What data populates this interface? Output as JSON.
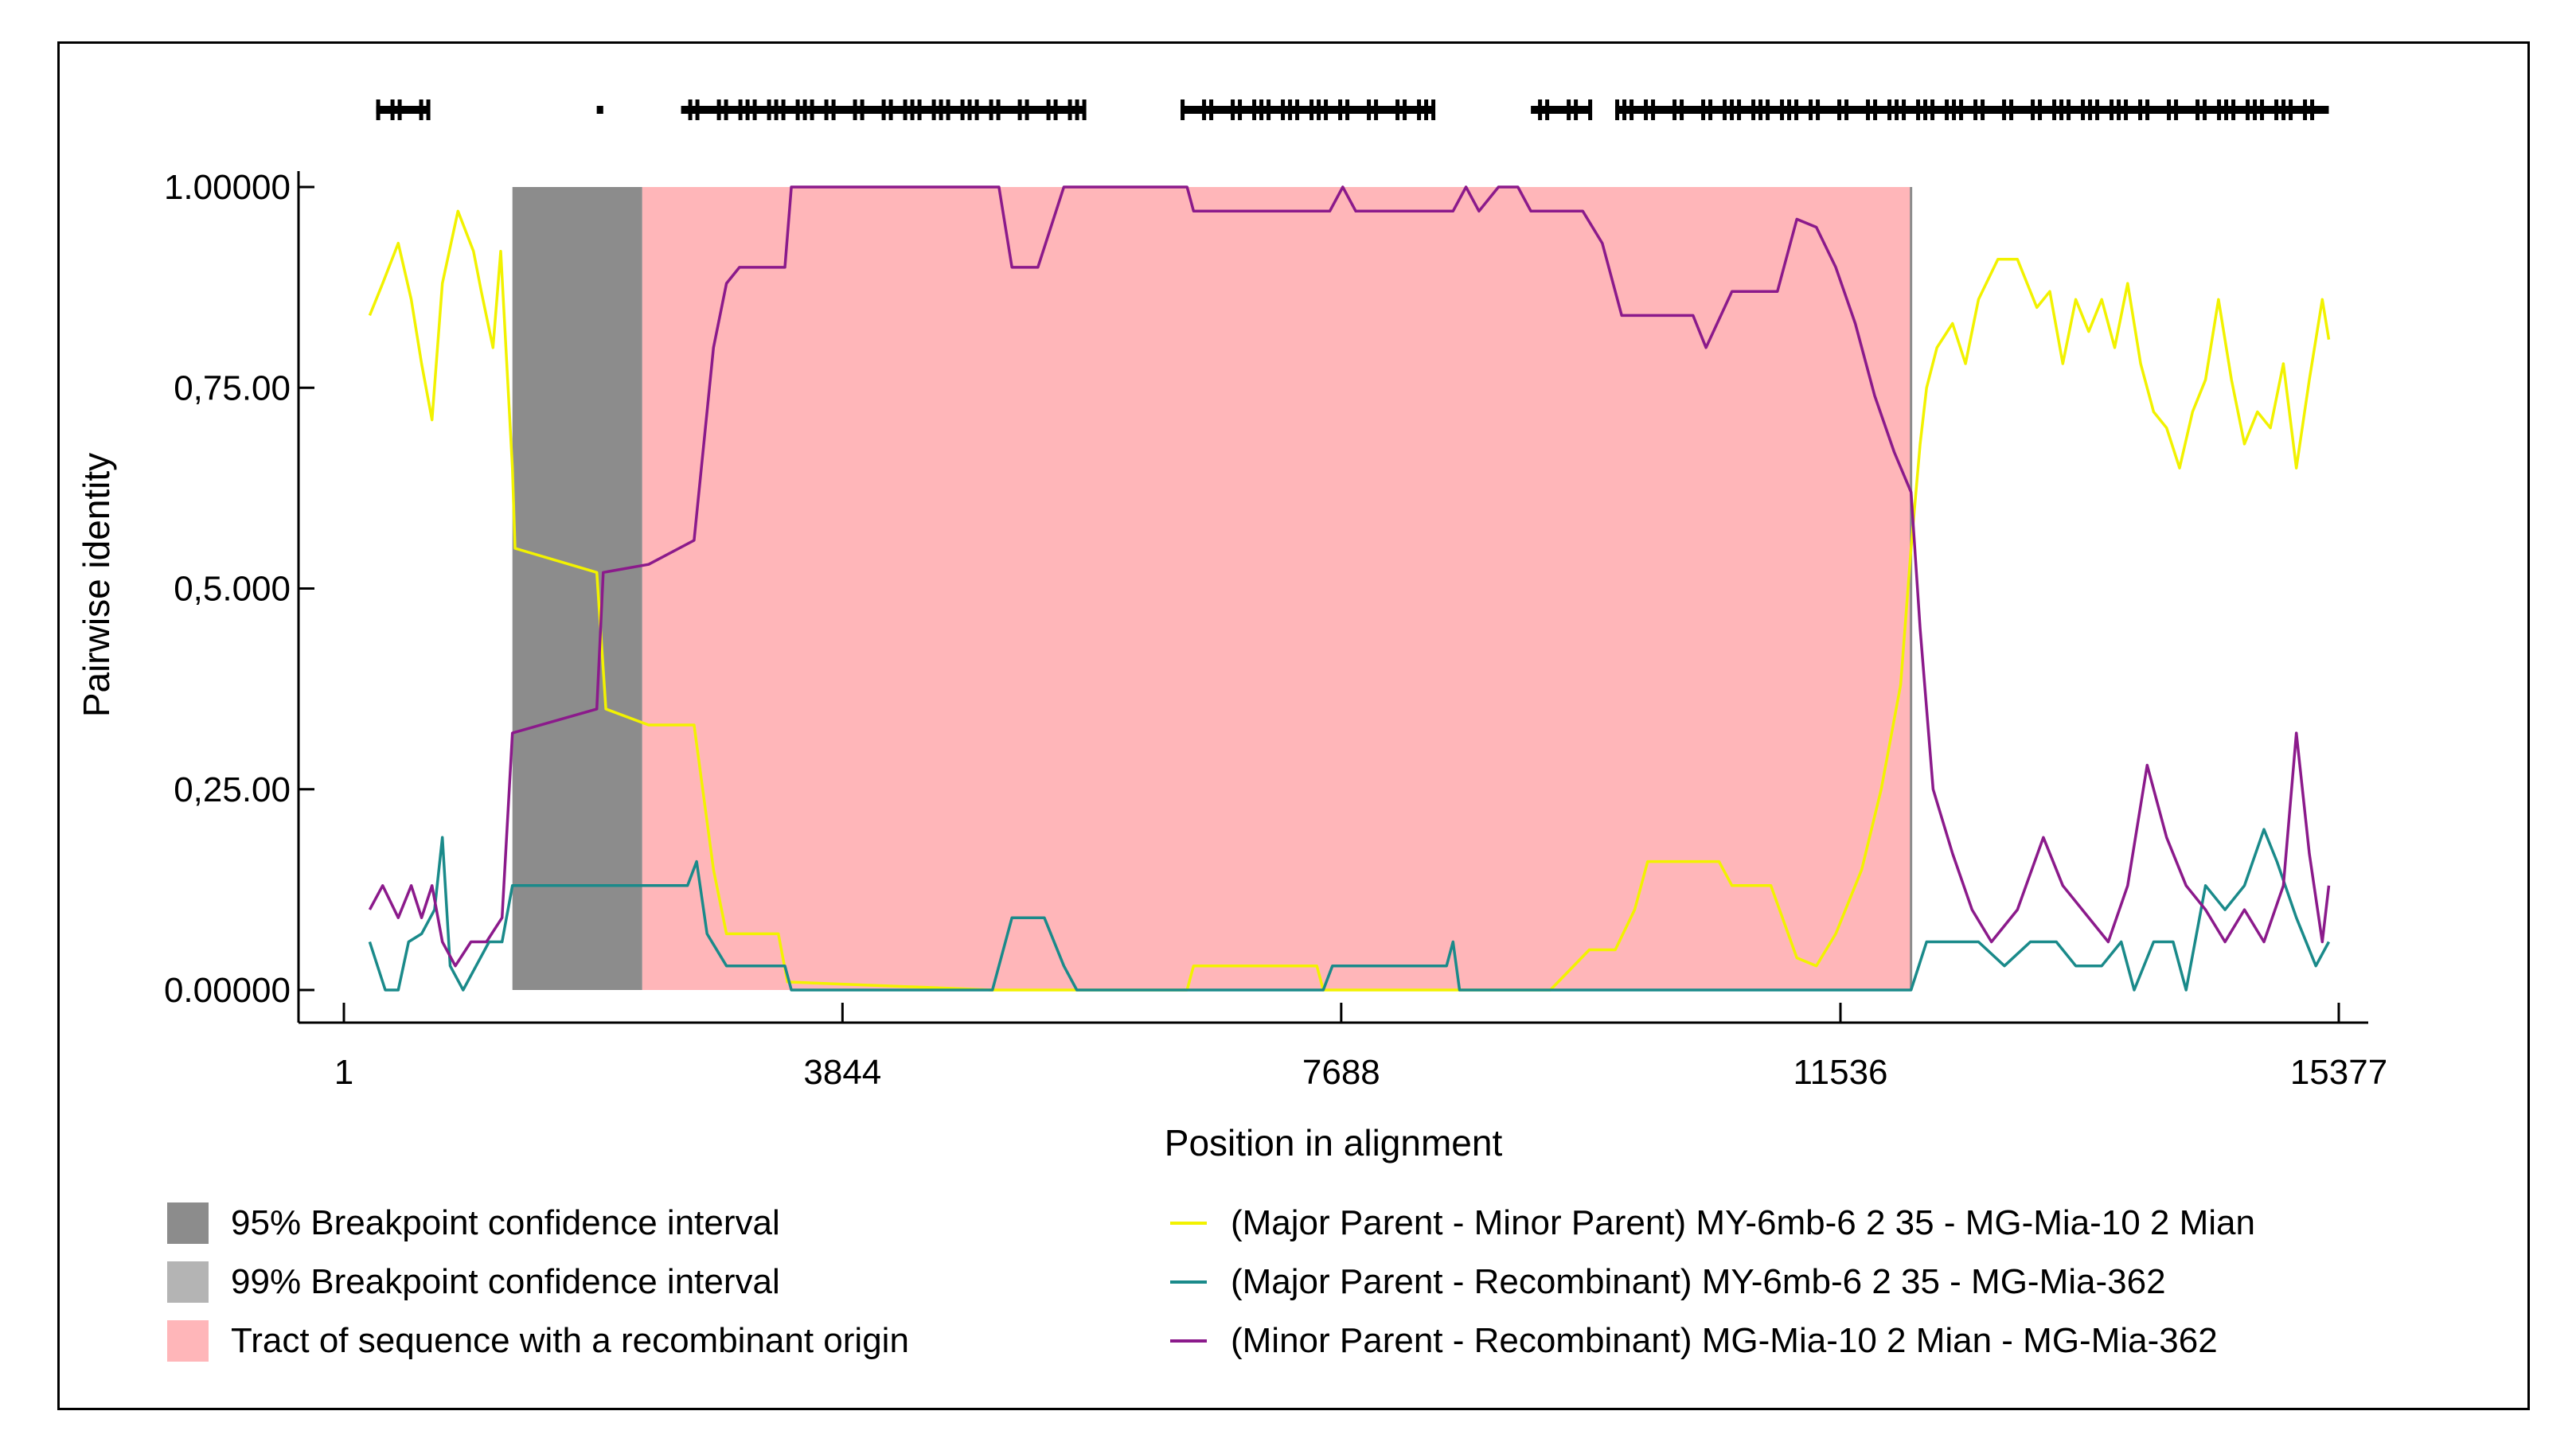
{
  "chart_data": {
    "type": "line",
    "title": "",
    "xlabel": "Position in alignment",
    "ylabel": "Pairwise identity",
    "xlim": [
      1,
      15377
    ],
    "ylim": [
      0,
      1
    ],
    "x_ticks": [
      1,
      3844,
      7688,
      11536,
      15377
    ],
    "x_tick_labels": [
      "1",
      "3844",
      "7688",
      "11536",
      "15377"
    ],
    "y_ticks": [
      0,
      0.25,
      0.5,
      0.75,
      1.0
    ],
    "y_tick_labels": [
      "0.00000",
      "0,25.00",
      "0,5.000",
      "0,75.00",
      "1.00000"
    ],
    "grid": false,
    "legend_position": "bottom",
    "breakpoint_ci_95": [
      1300,
      2300
    ],
    "recombinant_tract": [
      2300,
      12080
    ],
    "informative_sites": [
      [
        250,
        650
      ],
      [
        1950,
        2000
      ],
      [
        2600,
        5700
      ],
      [
        6450,
        8400
      ],
      [
        9150,
        9600
      ],
      [
        9800,
        15300
      ]
    ],
    "shaded_legend": [
      {
        "label": "95% Breakpoint confidence interval",
        "color": "#8c8c8c"
      },
      {
        "label": "99% Breakpoint confidence interval",
        "color": "#b4b4b4"
      },
      {
        "label": "Tract of sequence with a recombinant origin",
        "color": "#ffb6b9"
      }
    ],
    "series": [
      {
        "name": "(Major Parent - Minor Parent) MY-6mb-6 2 35 - MG-Mia-10 2 Mian",
        "color": "#f2f200",
        "points": [
          [
            200,
            0.84
          ],
          [
            300,
            0.88
          ],
          [
            420,
            0.93
          ],
          [
            520,
            0.86
          ],
          [
            600,
            0.78
          ],
          [
            680,
            0.71
          ],
          [
            760,
            0.88
          ],
          [
            880,
            0.97
          ],
          [
            1000,
            0.92
          ],
          [
            1060,
            0.87
          ],
          [
            1150,
            0.8
          ],
          [
            1210,
            0.92
          ],
          [
            1300,
            0.65
          ],
          [
            1320,
            0.55
          ],
          [
            1950,
            0.52
          ],
          [
            2020,
            0.35
          ],
          [
            2350,
            0.33
          ],
          [
            2700,
            0.33
          ],
          [
            2850,
            0.15
          ],
          [
            2950,
            0.07
          ],
          [
            3350,
            0.07
          ],
          [
            3420,
            0.01
          ],
          [
            5000,
            0.0
          ],
          [
            5200,
            0.0
          ],
          [
            5600,
            0.0
          ],
          [
            6500,
            0.0
          ],
          [
            6550,
            0.03
          ],
          [
            7500,
            0.03
          ],
          [
            7550,
            0.0
          ],
          [
            9000,
            0.0
          ],
          [
            9300,
            0.0
          ],
          [
            9600,
            0.05
          ],
          [
            9800,
            0.05
          ],
          [
            9950,
            0.1
          ],
          [
            10050,
            0.16
          ],
          [
            10600,
            0.16
          ],
          [
            10700,
            0.13
          ],
          [
            11000,
            0.13
          ],
          [
            11200,
            0.04
          ],
          [
            11350,
            0.03
          ],
          [
            11500,
            0.07
          ],
          [
            11700,
            0.15
          ],
          [
            11850,
            0.25
          ],
          [
            12000,
            0.38
          ],
          [
            12080,
            0.55
          ],
          [
            12150,
            0.68
          ],
          [
            12200,
            0.75
          ],
          [
            12280,
            0.8
          ],
          [
            12400,
            0.83
          ],
          [
            12500,
            0.78
          ],
          [
            12600,
            0.86
          ],
          [
            12750,
            0.91
          ],
          [
            12900,
            0.91
          ],
          [
            13050,
            0.85
          ],
          [
            13150,
            0.87
          ],
          [
            13250,
            0.78
          ],
          [
            13350,
            0.86
          ],
          [
            13450,
            0.82
          ],
          [
            13550,
            0.86
          ],
          [
            13650,
            0.8
          ],
          [
            13750,
            0.88
          ],
          [
            13850,
            0.78
          ],
          [
            13950,
            0.72
          ],
          [
            14050,
            0.7
          ],
          [
            14150,
            0.65
          ],
          [
            14250,
            0.72
          ],
          [
            14350,
            0.76
          ],
          [
            14450,
            0.86
          ],
          [
            14550,
            0.76
          ],
          [
            14650,
            0.68
          ],
          [
            14750,
            0.72
          ],
          [
            14850,
            0.7
          ],
          [
            14950,
            0.78
          ],
          [
            15050,
            0.65
          ],
          [
            15150,
            0.76
          ],
          [
            15250,
            0.86
          ],
          [
            15300,
            0.81
          ]
        ]
      },
      {
        "name": "(Major Parent - Recombinant) MY-6mb-6 2 35 - MG-Mia-362",
        "color": "#1a8a8a",
        "points": [
          [
            200,
            0.06
          ],
          [
            320,
            0.0
          ],
          [
            420,
            0.0
          ],
          [
            500,
            0.06
          ],
          [
            600,
            0.07
          ],
          [
            700,
            0.1
          ],
          [
            760,
            0.19
          ],
          [
            820,
            0.03
          ],
          [
            920,
            0.0
          ],
          [
            1020,
            0.03
          ],
          [
            1120,
            0.06
          ],
          [
            1220,
            0.06
          ],
          [
            1300,
            0.13
          ],
          [
            2300,
            0.13
          ],
          [
            2650,
            0.13
          ],
          [
            2720,
            0.16
          ],
          [
            2800,
            0.07
          ],
          [
            2950,
            0.03
          ],
          [
            3400,
            0.03
          ],
          [
            3450,
            0.0
          ],
          [
            5000,
            0.0
          ],
          [
            5150,
            0.09
          ],
          [
            5400,
            0.09
          ],
          [
            5550,
            0.03
          ],
          [
            5650,
            0.0
          ],
          [
            7550,
            0.0
          ],
          [
            7620,
            0.03
          ],
          [
            8500,
            0.03
          ],
          [
            8550,
            0.06
          ],
          [
            8600,
            0.0
          ],
          [
            12080,
            0.0
          ],
          [
            12200,
            0.06
          ],
          [
            12600,
            0.06
          ],
          [
            12800,
            0.03
          ],
          [
            13000,
            0.06
          ],
          [
            13200,
            0.06
          ],
          [
            13350,
            0.03
          ],
          [
            13550,
            0.03
          ],
          [
            13700,
            0.06
          ],
          [
            13800,
            0.0
          ],
          [
            13950,
            0.06
          ],
          [
            14100,
            0.06
          ],
          [
            14200,
            0.0
          ],
          [
            14350,
            0.13
          ],
          [
            14500,
            0.1
          ],
          [
            14650,
            0.13
          ],
          [
            14800,
            0.2
          ],
          [
            14900,
            0.16
          ],
          [
            15050,
            0.09
          ],
          [
            15200,
            0.03
          ],
          [
            15300,
            0.06
          ]
        ]
      },
      {
        "name": "(Minor Parent - Recombinant) MG-Mia-10 2 Mian - MG-Mia-362",
        "color": "#8b1a8b",
        "points": [
          [
            200,
            0.1
          ],
          [
            300,
            0.13
          ],
          [
            420,
            0.09
          ],
          [
            520,
            0.13
          ],
          [
            600,
            0.09
          ],
          [
            680,
            0.13
          ],
          [
            760,
            0.06
          ],
          [
            860,
            0.03
          ],
          [
            980,
            0.06
          ],
          [
            1100,
            0.06
          ],
          [
            1220,
            0.09
          ],
          [
            1300,
            0.32
          ],
          [
            1950,
            0.35
          ],
          [
            2000,
            0.52
          ],
          [
            2350,
            0.53
          ],
          [
            2700,
            0.56
          ],
          [
            2850,
            0.8
          ],
          [
            2950,
            0.88
          ],
          [
            3050,
            0.9
          ],
          [
            3400,
            0.9
          ],
          [
            3450,
            1.0
          ],
          [
            5050,
            1.0
          ],
          [
            5150,
            0.9
          ],
          [
            5350,
            0.9
          ],
          [
            5550,
            1.0
          ],
          [
            6500,
            1.0
          ],
          [
            6550,
            0.97
          ],
          [
            7600,
            0.97
          ],
          [
            7700,
            1.0
          ],
          [
            7800,
            0.97
          ],
          [
            8550,
            0.97
          ],
          [
            8650,
            1.0
          ],
          [
            8750,
            0.97
          ],
          [
            8900,
            1.0
          ],
          [
            9050,
            1.0
          ],
          [
            9150,
            0.97
          ],
          [
            9550,
            0.97
          ],
          [
            9700,
            0.93
          ],
          [
            9850,
            0.84
          ],
          [
            10400,
            0.84
          ],
          [
            10500,
            0.8
          ],
          [
            10700,
            0.87
          ],
          [
            11050,
            0.87
          ],
          [
            11200,
            0.96
          ],
          [
            11350,
            0.95
          ],
          [
            11500,
            0.9
          ],
          [
            11650,
            0.83
          ],
          [
            11800,
            0.74
          ],
          [
            11950,
            0.67
          ],
          [
            12080,
            0.62
          ],
          [
            12150,
            0.45
          ],
          [
            12250,
            0.25
          ],
          [
            12400,
            0.17
          ],
          [
            12550,
            0.1
          ],
          [
            12700,
            0.06
          ],
          [
            12900,
            0.1
          ],
          [
            13100,
            0.19
          ],
          [
            13250,
            0.13
          ],
          [
            13400,
            0.1
          ],
          [
            13600,
            0.06
          ],
          [
            13750,
            0.13
          ],
          [
            13900,
            0.28
          ],
          [
            14050,
            0.19
          ],
          [
            14200,
            0.13
          ],
          [
            14350,
            0.1
          ],
          [
            14500,
            0.06
          ],
          [
            14650,
            0.1
          ],
          [
            14800,
            0.06
          ],
          [
            14950,
            0.13
          ],
          [
            15050,
            0.32
          ],
          [
            15150,
            0.17
          ],
          [
            15250,
            0.06
          ],
          [
            15300,
            0.13
          ]
        ]
      }
    ]
  }
}
